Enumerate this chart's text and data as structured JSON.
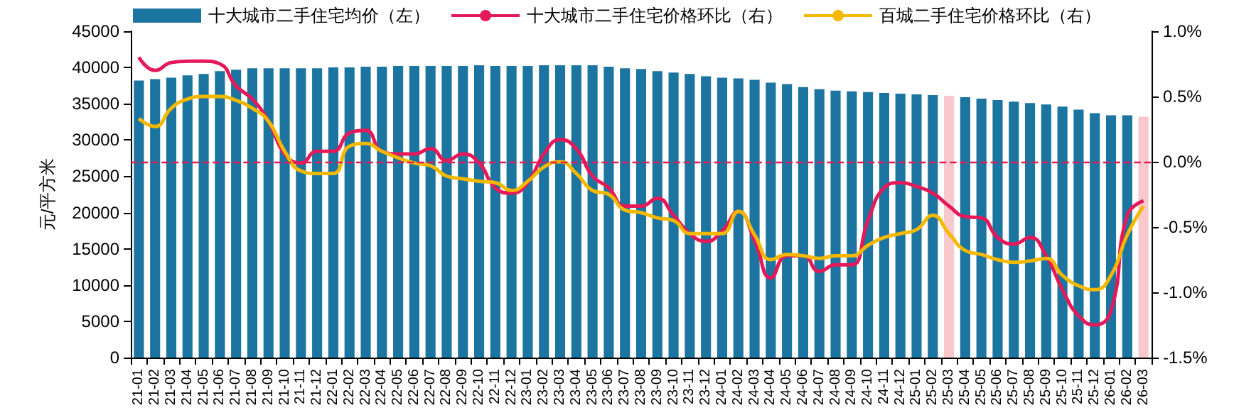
{
  "chart_data": {
    "type": "bar",
    "ylabel": "元/平方米",
    "legend": "top",
    "categories": [
      "21-01",
      "21-02",
      "21-03",
      "21-04",
      "21-05",
      "21-06",
      "21-07",
      "21-08",
      "21-09",
      "21-10",
      "21-11",
      "21-12",
      "22-01",
      "22-02",
      "22-03",
      "22-04",
      "22-05",
      "22-06",
      "22-07",
      "22-08",
      "22-09",
      "22-10",
      "22-11",
      "22-12",
      "23-01",
      "23-02",
      "23-03",
      "23-04",
      "23-05",
      "23-06",
      "23-07",
      "23-08",
      "23-09",
      "23-10",
      "23-11",
      "23-12",
      "24-01",
      "24-02",
      "24-03",
      "24-04",
      "24-05",
      "24-06",
      "24-07",
      "24-08",
      "24-09",
      "24-10",
      "24-11",
      "24-12",
      "25-01",
      "25-02",
      "25-03",
      "25-04",
      "25-05",
      "25-06",
      "25-07",
      "25-08",
      "25-09",
      "25-10",
      "25-11",
      "25-12",
      "26-01",
      "26-02",
      "26-03"
    ],
    "series": [
      {
        "name": "十大城市二手住宅均价（左）",
        "color": "#1c74a0",
        "colors": [
          "#1c74a0",
          "#1c74a0",
          "#1c74a0",
          "#1c74a0",
          "#1c74a0",
          "#1c74a0",
          "#1c74a0",
          "#1c74a0",
          "#1c74a0",
          "#1c74a0",
          "#1c74a0",
          "#1c74a0",
          "#1c74a0",
          "#1c74a0",
          "#1c74a0",
          "#1c74a0",
          "#1c74a0",
          "#1c74a0",
          "#1c74a0",
          "#1c74a0",
          "#1c74a0",
          "#1c74a0",
          "#1c74a0",
          "#1c74a0",
          "#1c74a0",
          "#1c74a0",
          "#1c74a0",
          "#1c74a0",
          "#1c74a0",
          "#1c74a0",
          "#1c74a0",
          "#1c74a0",
          "#1c74a0",
          "#1c74a0",
          "#1c74a0",
          "#1c74a0",
          "#1c74a0",
          "#1c74a0",
          "#1c74a0",
          "#1c74a0",
          "#1c74a0",
          "#1c74a0",
          "#1c74a0",
          "#1c74a0",
          "#1c74a0",
          "#1c74a0",
          "#1c74a0",
          "#1c74a0",
          "#1c74a0",
          "#1c74a0",
          "#f8c8cc",
          "#1c74a0",
          "#1c74a0",
          "#1c74a0",
          "#1c74a0",
          "#1c74a0",
          "#1c74a0",
          "#1c74a0",
          "#1c74a0",
          "#1c74a0",
          "#1c74a0",
          "#1c74a0",
          "#f8c8cc"
        ],
        "values": [
          38200,
          38400,
          38600,
          38900,
          39100,
          39500,
          39700,
          39900,
          39900,
          39900,
          39900,
          39900,
          40000,
          40000,
          40100,
          40100,
          40200,
          40200,
          40200,
          40200,
          40200,
          40300,
          40200,
          40200,
          40200,
          40300,
          40300,
          40300,
          40300,
          40100,
          39900,
          39800,
          39500,
          39300,
          39100,
          38800,
          38600,
          38500,
          38300,
          37900,
          37700,
          37300,
          37000,
          36800,
          36700,
          36600,
          36500,
          36400,
          36300,
          36200,
          36100,
          35900,
          35700,
          35500,
          35300,
          35100,
          34900,
          34600,
          34200,
          33700,
          33400,
          33400,
          33200
        ]
      },
      {
        "name": "十大城市二手住宅价格环比（右）",
        "type": "line",
        "axis": "y2",
        "color": "#e5195a",
        "values": [
          0.8,
          0.7,
          0.76,
          0.77,
          0.77,
          0.75,
          0.58,
          0.48,
          0.31,
          0.06,
          -0.01,
          0.08,
          0.08,
          0.22,
          0.24,
          0.08,
          0.06,
          0.06,
          0.1,
          0.01,
          0.06,
          -0.01,
          -0.2,
          -0.24,
          -0.16,
          0.06,
          0.17,
          0.1,
          -0.11,
          -0.2,
          -0.34,
          -0.34,
          -0.28,
          -0.41,
          -0.55,
          -0.61,
          -0.53,
          -0.38,
          -0.6,
          -0.89,
          -0.72,
          -0.72,
          -0.84,
          -0.79,
          -0.79,
          -0.45,
          -0.2,
          -0.16,
          -0.19,
          -0.24,
          -0.34,
          -0.42,
          -0.43,
          -0.58,
          -0.63,
          -0.58,
          -0.72,
          -0.98,
          -1.18,
          -1.25,
          -1.14,
          -0.41,
          -0.3
        ]
      },
      {
        "name": "百城二手住宅价格环比（右）",
        "type": "line",
        "axis": "y2",
        "color": "#f5b800",
        "values": [
          0.33,
          0.27,
          0.41,
          0.48,
          0.5,
          0.5,
          0.47,
          0.41,
          0.31,
          0.08,
          -0.07,
          -0.09,
          -0.09,
          0.12,
          0.14,
          0.08,
          0.03,
          -0.01,
          -0.03,
          -0.11,
          -0.13,
          -0.15,
          -0.16,
          -0.22,
          -0.15,
          -0.04,
          0.0,
          -0.09,
          -0.22,
          -0.25,
          -0.37,
          -0.39,
          -0.43,
          -0.45,
          -0.55,
          -0.55,
          -0.55,
          -0.38,
          -0.56,
          -0.75,
          -0.71,
          -0.72,
          -0.74,
          -0.72,
          -0.72,
          -0.64,
          -0.58,
          -0.55,
          -0.52,
          -0.41,
          -0.55,
          -0.68,
          -0.71,
          -0.75,
          -0.77,
          -0.76,
          -0.74,
          -0.87,
          -0.95,
          -0.98,
          -0.87,
          -0.56,
          -0.34
        ]
      }
    ],
    "ylim": [
      0,
      45000
    ],
    "yticks": [
      0,
      5000,
      10000,
      15000,
      20000,
      25000,
      30000,
      35000,
      40000,
      45000
    ],
    "y2lim": [
      -1.5,
      1.0
    ],
    "y2ticks": [
      {
        "value": -1.5,
        "label": "-1.5%"
      },
      {
        "value": -1.0,
        "label": "-1.0%"
      },
      {
        "value": -0.5,
        "label": "-0.5%"
      },
      {
        "value": 0,
        "label": "0.0%"
      },
      {
        "value": 0.5,
        "label": "0.5%"
      },
      {
        "value": 1.0,
        "label": "1.0%"
      }
    ],
    "ref_lines": [
      {
        "axis": "y2",
        "value": 0,
        "color": "#e5195a",
        "line_style": "dashed"
      }
    ]
  }
}
